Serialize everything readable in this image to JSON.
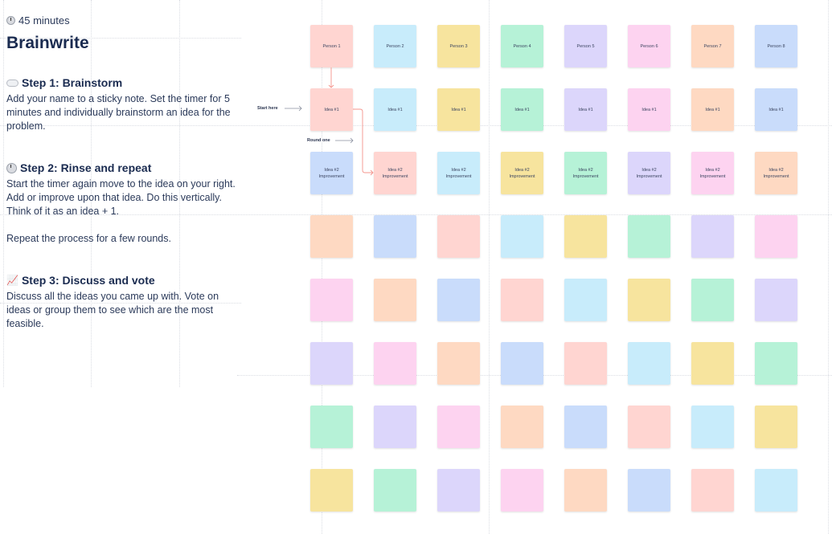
{
  "panel": {
    "duration": "45 minutes",
    "title": "Brainwrite",
    "steps": [
      {
        "title": "Step 1: Brainstorm",
        "icon": "cloud-icon",
        "body": "Add your name to a sticky note. Set the timer for 5 minutes and individually brainstorm an idea for the problem."
      },
      {
        "title": "Step 2: Rinse and repeat",
        "icon": "clock-icon",
        "body": "Start the timer again move to the idea on your right. Add or improve upon that idea. Do this vertically. Think of it as an idea + 1.\n\nRepeat the process for a few rounds."
      },
      {
        "title": "Step 3: Discuss and vote",
        "icon": "chart-increasing-icon",
        "body": "Discuss all the ideas you came up with. Vote on ideas or group them to see which are the most feasible."
      }
    ]
  },
  "board": {
    "start_label": "Start here",
    "round_label": "Round one",
    "arrow_color": "#f4948c",
    "palette": [
      "#ffd5d1",
      "#c8ecfb",
      "#f7e49e",
      "#b6f2d7",
      "#dcd6fb",
      "#fdd3f0",
      "#fed9c2",
      "#c9dcfb"
    ],
    "row_labels": [
      [
        "Person 1",
        "Person 2",
        "Person 3",
        "Person 4",
        "Person 5",
        "Person 6",
        "Person 7",
        "Person 8"
      ],
      [
        "Idea #1",
        "Idea #1",
        "Idea #1",
        "Idea #1",
        "Idea #1",
        "Idea #1",
        "Idea #1",
        "Idea #1"
      ],
      [
        "Idea #2\nImprovement",
        "Idea #2\nImprovement",
        "Idea #2\nImprovement",
        "Idea #2\nImprovement",
        "Idea #2\nImprovement",
        "Idea #2\nImprovement",
        "Idea #2\nImprovement",
        "Idea #2\nImprovement"
      ]
    ],
    "rows": 8,
    "cols": 8
  }
}
